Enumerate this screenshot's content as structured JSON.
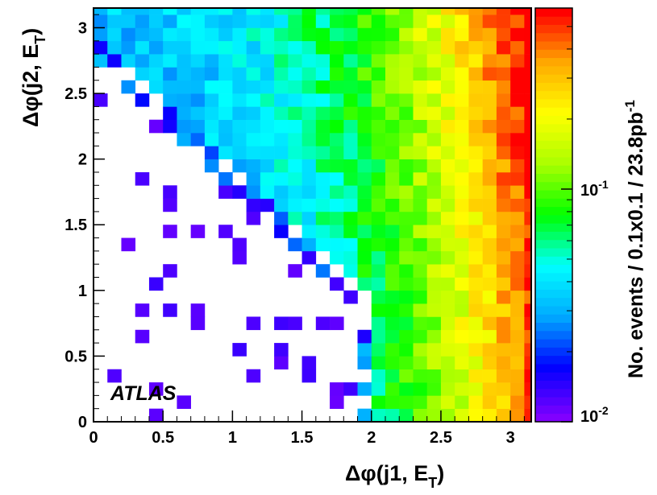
{
  "chart_data": {
    "type": "heatmap",
    "title": "",
    "experiment_label": "ATLAS",
    "xlabel": {
      "prefix": "Δφ(",
      "main": "j1, E",
      "sub": "T",
      "suffix": ")"
    },
    "ylabel": {
      "prefix": "Δφ(",
      "main": "j2, E",
      "sub": "T",
      "suffix": ")"
    },
    "zlabel": {
      "main": "No. events / 0.1x0.1 / 23.8pb",
      "sup": "-1"
    },
    "xlim": [
      0,
      3.15
    ],
    "ylim": [
      0,
      3.15
    ],
    "bin_width": 0.1,
    "x_ticks": [
      "0",
      "0.5",
      "1",
      "1.5",
      "2",
      "2.5",
      "3"
    ],
    "x_tick_values": [
      0,
      0.5,
      1,
      1.5,
      2,
      2.5,
      3
    ],
    "y_ticks": [
      "0",
      "0.5",
      "1",
      "1.5",
      "2",
      "2.5",
      "3"
    ],
    "y_tick_values": [
      0,
      0.5,
      1,
      1.5,
      2,
      2.5,
      3
    ],
    "z_scale": "log",
    "zlim": [
      0.01,
      0.6
    ],
    "z_ticks": [
      {
        "base": "10",
        "exp": "-1",
        "value": 0.1
      },
      {
        "base": "10",
        "exp": "-2",
        "value": 0.01
      }
    ],
    "colormap": [
      "#8000ff",
      "#0000ff",
      "#00aaff",
      "#00ffff",
      "#00ff00",
      "#aaff00",
      "#ffff00",
      "#ffaa00",
      "#ff0000"
    ],
    "description_of_distribution": "Low density (white/purple) at small Δφ(j1,ET) and small Δφ(j2,ET); density rises toward Δφ(j1,ET)≈π (red, ~0.5). Along the kinematic boundary Δφ(j1)+Δφ(j2)≈π the bins are blue/cyan.",
    "generator": {
      "hot_x": 3.1,
      "hot_y": 3.1,
      "boundary_sum": 3.14
    }
  }
}
